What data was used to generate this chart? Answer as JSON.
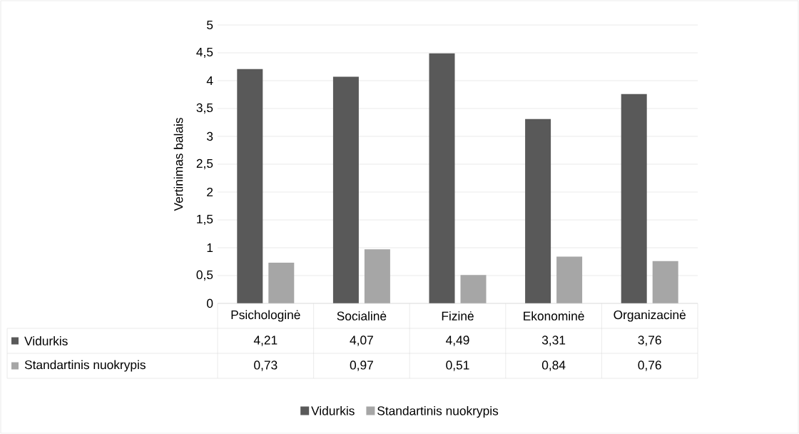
{
  "chart_data": {
    "type": "bar",
    "ylabel": "Vertinimas balais",
    "categories": [
      "Psichologinė",
      "Socialinė",
      "Fizinė",
      "Ekonominė",
      "Organizacinė"
    ],
    "series": [
      {
        "name": "Vidurkis",
        "color": "#595959",
        "values": [
          4.21,
          4.07,
          4.49,
          3.31,
          3.76
        ],
        "value_labels": [
          "4,21",
          "4,07",
          "4,49",
          "3,31",
          "3,76"
        ]
      },
      {
        "name": "Standartinis nuokrypis",
        "color": "#a6a6a6",
        "values": [
          0.73,
          0.97,
          0.51,
          0.84,
          0.76
        ],
        "value_labels": [
          "0,73",
          "0,97",
          "0,51",
          "0,84",
          "0,76"
        ]
      }
    ],
    "ylim": [
      0,
      5
    ],
    "yticks": [
      0,
      {
        "value": 0.5,
        "label": "0,5"
      },
      1,
      {
        "value": 1.5,
        "label": "1,5"
      },
      2,
      {
        "value": 2.5,
        "label": "2,5"
      },
      3,
      {
        "value": 3.5,
        "label": "3,5"
      },
      4,
      {
        "value": 4.5,
        "label": "4,5"
      },
      5
    ],
    "grid": "y",
    "legend": "bottom"
  }
}
